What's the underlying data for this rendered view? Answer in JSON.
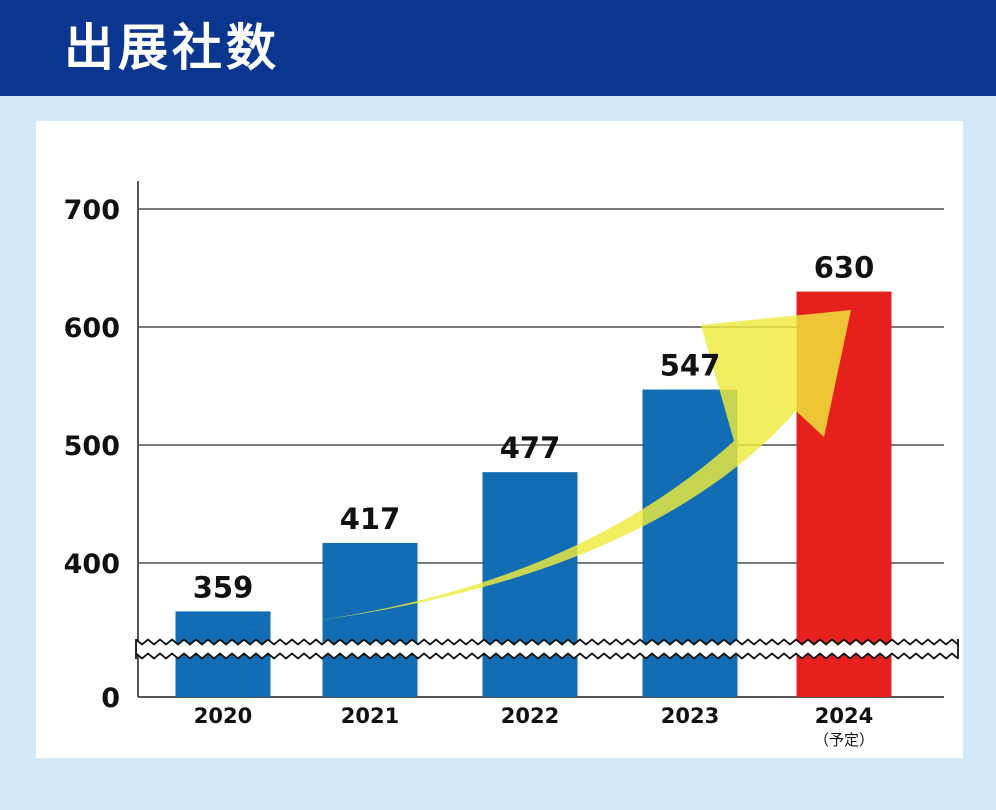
{
  "header": {
    "title": "出展社数"
  },
  "colors": {
    "header_bg": "#0a3690",
    "page_bg": "#d4e9f7",
    "bar_actual": "#126db5",
    "bar_planned": "#e6201c",
    "arrow": "#eeea3c"
  },
  "chart_data": {
    "type": "bar",
    "title": "出展社数",
    "xlabel": "",
    "ylabel": "",
    "categories": [
      "2020",
      "2021",
      "2022",
      "2023",
      "2024"
    ],
    "category_notes": [
      "",
      "",
      "",
      "",
      "（予定）"
    ],
    "values": [
      359,
      417,
      477,
      547,
      630
    ],
    "value_labels": [
      "359",
      "417",
      "477",
      "547",
      "630"
    ],
    "ylim": [
      300,
      700
    ],
    "yaxis_break": true,
    "yticks": [
      0,
      400,
      500,
      600,
      700
    ],
    "ytick_labels": [
      "0",
      "400",
      "500",
      "600",
      "700"
    ],
    "grid": true,
    "highlight_last_as_planned": true,
    "trend_arrow": true
  }
}
